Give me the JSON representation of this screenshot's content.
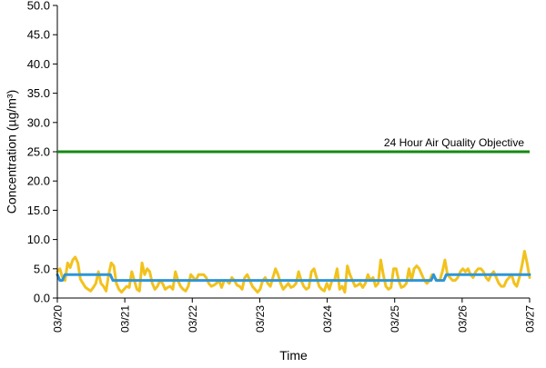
{
  "chart_data": {
    "type": "line",
    "title": "",
    "xlabel": "Time",
    "ylabel": "Concentration (µg/m³)",
    "ylim": [
      0,
      50
    ],
    "yticks": [
      "0.0",
      "5.0",
      "10.0",
      "15.0",
      "20.0",
      "25.0",
      "30.0",
      "35.0",
      "40.0",
      "45.0",
      "50.0"
    ],
    "xlim": [
      "03/20",
      "03/27"
    ],
    "xticks": [
      "03/20",
      "03/21",
      "03/22",
      "03/23",
      "03/24",
      "03/25",
      "03/26",
      "03/27"
    ],
    "grid": false,
    "legend": "none",
    "objective": {
      "label": "24 Hour Air Quality Objective",
      "value": 25,
      "color": "#138a13"
    },
    "series": [
      {
        "color": "#f2c21c",
        "x_start": "03/20",
        "x_end": "03/27",
        "values": [
          4.5,
          5,
          3.5,
          3,
          6,
          5.2,
          6.5,
          7,
          6,
          3.2,
          2.5,
          1.8,
          1.5,
          1.2,
          1.8,
          2.5,
          4.5,
          2.5,
          2,
          1.2,
          4,
          6,
          5.5,
          2.5,
          1.5,
          1,
          1.5,
          2,
          1.8,
          4.5,
          3,
          1.5,
          1.2,
          6,
          4,
          5,
          4.5,
          2.5,
          1.5,
          2,
          3,
          2.5,
          1.5,
          1.8,
          2,
          1.5,
          4.5,
          3,
          2,
          1.5,
          1.2,
          2,
          4,
          3.5,
          3,
          4,
          4,
          4,
          3.5,
          2.5,
          2,
          2.2,
          2.5,
          3,
          1.8,
          3,
          3,
          2.5,
          3.5,
          3,
          2.2,
          2,
          1.5,
          3.5,
          4,
          3,
          2,
          1.5,
          1,
          1.5,
          3,
          3.5,
          2.5,
          2,
          3.5,
          5,
          4,
          2.5,
          1.5,
          2,
          2.5,
          1.8,
          2,
          2.5,
          4.5,
          3,
          2,
          1.5,
          1.8,
          4.5,
          5,
          3.5,
          2,
          1.5,
          1.2,
          2.5,
          1.5,
          3,
          3,
          5,
          1.5,
          2,
          1,
          5.5,
          4,
          3,
          2,
          2.2,
          2.5,
          1.8,
          2.5,
          4,
          3,
          3.5,
          2,
          2.5,
          6.5,
          4,
          2,
          1.5,
          1.8,
          5,
          5,
          3,
          1.8,
          2,
          2.5,
          5,
          3,
          5,
          5.5,
          5,
          4,
          3,
          2.5,
          3,
          4,
          3.5,
          3,
          3,
          4.5,
          6.5,
          4,
          3.5,
          3,
          3,
          3.5,
          4.5,
          5,
          4.5,
          5,
          4,
          3.5,
          4.5,
          5,
          5,
          4.5,
          3.5,
          3,
          4,
          4.5,
          3.5,
          2.5,
          2,
          2,
          3,
          3.5,
          4,
          2.5,
          2,
          3.5,
          5.5,
          8,
          6,
          3.5
        ]
      },
      {
        "color": "#2e95d8",
        "x_start": "03/20",
        "x_end": "03/27",
        "values": [
          4,
          3,
          3,
          4,
          4,
          4,
          4,
          4,
          4,
          4,
          4,
          4,
          4,
          4,
          4,
          4,
          4,
          4,
          4,
          4,
          4,
          4,
          3,
          3,
          3,
          3,
          3,
          3,
          3,
          3,
          3,
          3,
          3,
          3,
          3,
          3,
          3,
          3,
          3,
          3,
          3,
          3,
          3,
          3,
          3,
          3,
          3,
          3,
          3,
          3,
          3,
          3,
          3,
          3,
          3,
          3,
          3,
          3,
          3,
          3,
          3,
          3,
          3,
          3,
          3,
          3,
          3,
          3,
          3,
          3,
          3,
          3,
          3,
          3,
          3,
          3,
          3,
          3,
          3,
          3,
          3,
          3,
          3,
          3,
          3,
          3,
          3,
          3,
          3,
          3,
          3,
          3,
          3,
          3,
          3,
          3,
          3,
          3,
          3,
          3,
          3,
          3,
          3,
          3,
          3,
          3,
          3,
          3,
          3,
          3,
          3,
          3,
          3,
          3,
          3,
          3,
          3,
          3,
          3,
          3,
          3,
          3,
          3,
          3,
          3,
          3,
          3,
          3,
          3,
          3,
          3,
          3,
          3,
          3,
          3,
          3,
          3,
          3,
          3,
          3,
          3,
          3,
          3,
          3,
          3,
          3,
          3,
          3,
          3,
          4,
          3,
          3,
          3,
          3,
          4,
          4,
          4,
          4,
          4,
          4,
          4,
          4,
          4,
          4,
          4,
          4,
          4,
          4,
          4,
          4,
          4,
          4,
          4,
          4,
          4,
          4,
          4,
          4,
          4,
          4,
          4,
          4,
          4,
          4,
          4,
          4,
          4,
          4
        ]
      }
    ]
  }
}
